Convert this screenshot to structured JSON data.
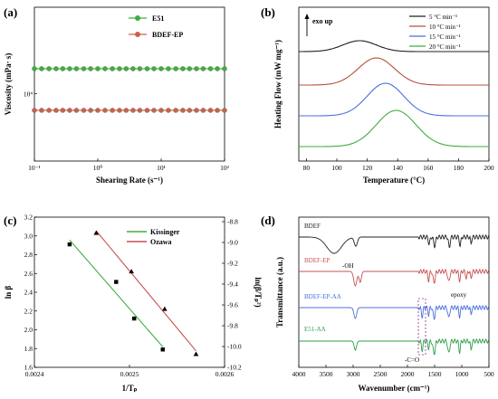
{
  "panels": {
    "a": "(a)",
    "b": "(b)",
    "c": "(c)",
    "d": "(d)"
  },
  "chart_data": [
    {
      "panel": "(a)",
      "type": "scatter",
      "xlabel": "Shearing Rate (s⁻¹)",
      "ylabel": "Viscosity (mPa· s)",
      "xscale": "log",
      "yscale": "log",
      "xlim": [
        0.1,
        100
      ],
      "x_ticks": [
        "10⁻¹",
        "10⁰",
        "10¹",
        "10²"
      ],
      "y_ticks": [
        "10⁴"
      ],
      "legend_position": "top-right",
      "series": [
        {
          "name": "E51",
          "color": "#3fae3f",
          "y": 13500,
          "x": [
            0.1,
            0.13,
            0.17,
            0.22,
            0.28,
            0.36,
            0.46,
            0.6,
            0.77,
            1.0,
            1.3,
            1.7,
            2.2,
            2.8,
            3.6,
            4.6,
            6.0,
            7.7,
            10,
            13,
            17,
            22,
            28,
            36,
            46,
            60,
            77,
            100
          ]
        },
        {
          "name": "BDEF-EP",
          "color": "#c8644a",
          "y": 8200,
          "x": [
            0.1,
            0.13,
            0.17,
            0.22,
            0.28,
            0.36,
            0.46,
            0.6,
            0.77,
            1.0,
            1.3,
            1.7,
            2.2,
            2.8,
            3.6,
            4.6,
            6.0,
            7.7,
            10,
            13,
            17,
            22,
            28,
            36,
            46,
            60,
            77,
            100
          ]
        }
      ]
    },
    {
      "panel": "(b)",
      "type": "line",
      "xlabel": "Temperature (°C)",
      "ylabel": "Heating Flow (mW mg⁻¹)",
      "xlim": [
        75,
        200
      ],
      "x_ticks": [
        80,
        100,
        120,
        140,
        160,
        180,
        200
      ],
      "annotation": "exo up",
      "legend_position": "top-right",
      "series": [
        {
          "name": "5 °C min⁻¹",
          "color": "#222222",
          "peak_x": 115
        },
        {
          "name": "10 °C min⁻¹",
          "color": "#b5503a",
          "peak_x": 126
        },
        {
          "name": "15 °C min⁻¹",
          "color": "#4a6fe0",
          "peak_x": 132
        },
        {
          "name": "20 °C min⁻¹",
          "color": "#3fae3f",
          "peak_x": 139
        }
      ]
    },
    {
      "panel": "(c)",
      "type": "scatter",
      "xlabel": "1/Tₚ",
      "ylabel_left": "ln β",
      "ylabel_right": "ln(β/Tₚ²)",
      "xlim": [
        0.0024,
        0.0026
      ],
      "x_ticks": [
        "0.0024",
        "0.0025",
        "0.0026"
      ],
      "ylim_left": [
        1.6,
        3.2
      ],
      "y_ticks_left": [
        "1.6",
        "1.8",
        "2.0",
        "2.2",
        "2.4",
        "2.6",
        "2.8",
        "3.0",
        "3.2"
      ],
      "ylim_right": [
        -10.2,
        -8.8
      ],
      "y_ticks_right": [
        "-8.8",
        "-9.0",
        "-9.2",
        "-9.4",
        "-9.6",
        "-9.8",
        "-10.0",
        "-10.2"
      ],
      "legend_position": "top-right",
      "series": [
        {
          "name": "Kissinger",
          "color": "#3fae3f",
          "marker": "square",
          "x": [
            0.002437,
            0.002486,
            0.002505,
            0.002535
          ],
          "y": [
            2.91,
            2.51,
            2.12,
            1.79
          ]
        },
        {
          "name": "Ozawa",
          "color": "#c85050",
          "marker": "triangle",
          "x": [
            0.002465,
            0.002502,
            0.002537,
            0.00257
          ],
          "y": [
            3.03,
            2.62,
            2.22,
            1.74
          ]
        }
      ]
    },
    {
      "panel": "(d)",
      "type": "line",
      "xlabel": "Wavenumber (cm⁻¹)",
      "ylabel": "Transmittance (a.u.)",
      "xlim": [
        4000,
        500
      ],
      "x_ticks": [
        4000,
        3500,
        3000,
        2500,
        2000,
        1500,
        1000,
        500
      ],
      "annotations": [
        "-OH",
        "epoxy",
        "-C=O"
      ],
      "series": [
        {
          "name": "BDEF",
          "color": "#222222"
        },
        {
          "name": "BDEF-EP",
          "color": "#c85050"
        },
        {
          "name": "BDEF-EP-AA",
          "color": "#4a6fe0"
        },
        {
          "name": "E51-AA",
          "color": "#2e9e4a"
        }
      ]
    }
  ]
}
